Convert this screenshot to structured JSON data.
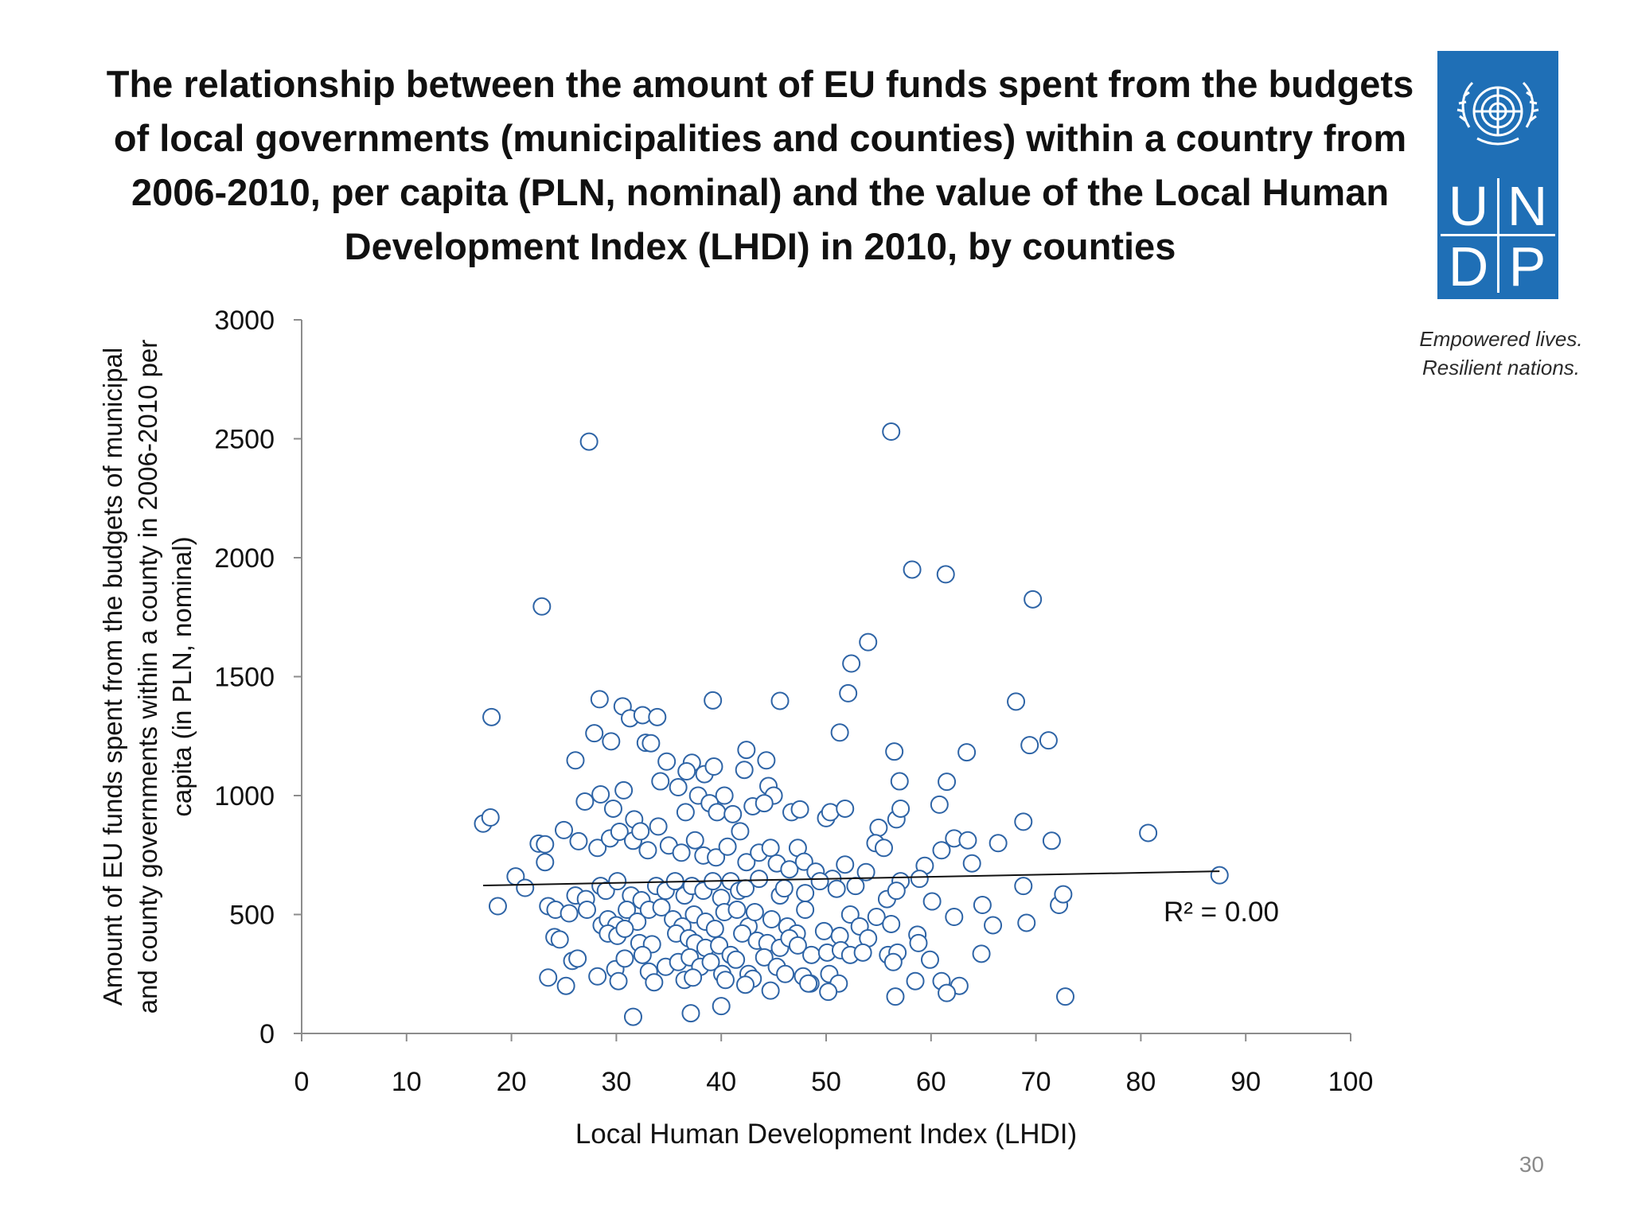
{
  "title_lines": [
    "The relationship between the amount of EU funds spent from the budgets",
    "of local governments (municipalities and counties) within a country from",
    "2006-2010, per capita (PLN, nominal) and the value of the Local Human",
    "Development Index (LHDI) in 2010, by counties"
  ],
  "logo": {
    "letters": [
      "U",
      "N",
      "D",
      "P"
    ],
    "tagline_lines": [
      "Empowered lives.",
      "Resilient nations."
    ],
    "color": "#1f6fb6"
  },
  "page_number": "30",
  "chart_data": {
    "type": "scatter",
    "xlabel": "Local Human Development Index (LHDI)",
    "ylabel_lines": [
      "Amount of EU funds spent from the budgets of municipal",
      "and county governments within a county in 2006-2010 per",
      "capita (in PLN, nominal)"
    ],
    "xlim": [
      0,
      100
    ],
    "ylim": [
      0,
      3000
    ],
    "xticks": [
      0,
      10,
      20,
      30,
      40,
      50,
      60,
      70,
      80,
      90,
      100
    ],
    "yticks": [
      0,
      500,
      1000,
      1500,
      2000,
      2500,
      3000
    ],
    "grid": false,
    "marker_color": "#2e64a6",
    "trendline": {
      "x": [
        17.3,
        87.5
      ],
      "y": [
        622,
        682
      ]
    },
    "annotation": "R² = 0.00",
    "points": [
      [
        27.4,
        2488
      ],
      [
        56.2,
        2530
      ],
      [
        22.9,
        1795
      ],
      [
        58.2,
        1950
      ],
      [
        61.4,
        1930
      ],
      [
        69.7,
        1825
      ],
      [
        54.0,
        1645
      ],
      [
        52.4,
        1555
      ],
      [
        52.1,
        1430
      ],
      [
        18.1,
        1330
      ],
      [
        28.4,
        1405
      ],
      [
        30.6,
        1375
      ],
      [
        31.3,
        1325
      ],
      [
        32.5,
        1338
      ],
      [
        33.9,
        1330
      ],
      [
        39.2,
        1400
      ],
      [
        45.6,
        1398
      ],
      [
        68.1,
        1395
      ],
      [
        51.3,
        1265
      ],
      [
        27.9,
        1262
      ],
      [
        29.5,
        1228
      ],
      [
        32.8,
        1222
      ],
      [
        33.3,
        1220
      ],
      [
        42.4,
        1192
      ],
      [
        56.5,
        1185
      ],
      [
        63.4,
        1182
      ],
      [
        71.2,
        1232
      ],
      [
        69.4,
        1212
      ],
      [
        26.1,
        1148
      ],
      [
        34.8,
        1143
      ],
      [
        37.2,
        1138
      ],
      [
        38.4,
        1090
      ],
      [
        39.3,
        1122
      ],
      [
        44.3,
        1148
      ],
      [
        42.2,
        1108
      ],
      [
        36.7,
        1102
      ],
      [
        35.9,
        1035
      ],
      [
        34.2,
        1060
      ],
      [
        40.3,
        1000
      ],
      [
        44.5,
        1040
      ],
      [
        45.0,
        1000
      ],
      [
        57.0,
        1060
      ],
      [
        61.5,
        1058
      ],
      [
        60.8,
        962
      ],
      [
        27.0,
        975
      ],
      [
        28.5,
        1005
      ],
      [
        30.7,
        1022
      ],
      [
        29.7,
        945
      ],
      [
        31.7,
        900
      ],
      [
        34.0,
        870
      ],
      [
        36.6,
        930
      ],
      [
        37.8,
        1000
      ],
      [
        38.9,
        968
      ],
      [
        39.6,
        930
      ],
      [
        41.1,
        922
      ],
      [
        43.0,
        955
      ],
      [
        44.1,
        968
      ],
      [
        46.7,
        930
      ],
      [
        47.5,
        942
      ],
      [
        50.0,
        905
      ],
      [
        50.4,
        930
      ],
      [
        51.8,
        945
      ],
      [
        55.0,
        865
      ],
      [
        56.7,
        900
      ],
      [
        57.1,
        945
      ],
      [
        62.2,
        820
      ],
      [
        63.5,
        812
      ],
      [
        66.4,
        800
      ],
      [
        68.8,
        890
      ],
      [
        71.5,
        810
      ],
      [
        80.7,
        843
      ],
      [
        17.3,
        882
      ],
      [
        18.0,
        908
      ],
      [
        22.6,
        798
      ],
      [
        23.2,
        795
      ],
      [
        25.0,
        855
      ],
      [
        26.4,
        808
      ],
      [
        28.2,
        780
      ],
      [
        29.4,
        820
      ],
      [
        30.3,
        848
      ],
      [
        31.6,
        810
      ],
      [
        32.3,
        850
      ],
      [
        33.0,
        770
      ],
      [
        35.0,
        790
      ],
      [
        36.2,
        760
      ],
      [
        37.5,
        812
      ],
      [
        38.3,
        748
      ],
      [
        39.5,
        740
      ],
      [
        40.6,
        785
      ],
      [
        41.8,
        850
      ],
      [
        42.4,
        720
      ],
      [
        43.6,
        760
      ],
      [
        44.7,
        780
      ],
      [
        45.3,
        715
      ],
      [
        46.5,
        690
      ],
      [
        47.3,
        780
      ],
      [
        47.9,
        722
      ],
      [
        49.0,
        680
      ],
      [
        50.6,
        650
      ],
      [
        51.8,
        710
      ],
      [
        53.8,
        678
      ],
      [
        54.7,
        800
      ],
      [
        55.5,
        780
      ],
      [
        57.1,
        640
      ],
      [
        59.4,
        705
      ],
      [
        61.0,
        770
      ],
      [
        63.9,
        715
      ],
      [
        20.4,
        660
      ],
      [
        21.3,
        612
      ],
      [
        23.2,
        720
      ],
      [
        26.1,
        580
      ],
      [
        27.1,
        565
      ],
      [
        28.5,
        620
      ],
      [
        29.0,
        600
      ],
      [
        30.1,
        640
      ],
      [
        31.4,
        580
      ],
      [
        32.4,
        560
      ],
      [
        33.8,
        620
      ],
      [
        34.7,
        600
      ],
      [
        35.6,
        640
      ],
      [
        36.5,
        580
      ],
      [
        37.2,
        620
      ],
      [
        38.3,
        600
      ],
      [
        39.2,
        640
      ],
      [
        40.0,
        570
      ],
      [
        40.9,
        640
      ],
      [
        41.7,
        600
      ],
      [
        42.3,
        610
      ],
      [
        43.6,
        650
      ],
      [
        45.6,
        580
      ],
      [
        46.0,
        610
      ],
      [
        48.0,
        590
      ],
      [
        49.4,
        640
      ],
      [
        51.0,
        608
      ],
      [
        52.8,
        620
      ],
      [
        55.8,
        565
      ],
      [
        56.7,
        600
      ],
      [
        58.9,
        650
      ],
      [
        60.1,
        555
      ],
      [
        64.9,
        540
      ],
      [
        68.8,
        620
      ],
      [
        72.2,
        540
      ],
      [
        72.6,
        585
      ],
      [
        87.5,
        665
      ],
      [
        18.7,
        535
      ],
      [
        23.5,
        535
      ],
      [
        24.2,
        520
      ],
      [
        25.5,
        505
      ],
      [
        27.2,
        520
      ],
      [
        28.6,
        455
      ],
      [
        29.2,
        480
      ],
      [
        30.0,
        455
      ],
      [
        31.0,
        520
      ],
      [
        32.0,
        470
      ],
      [
        33.1,
        520
      ],
      [
        34.3,
        530
      ],
      [
        35.4,
        480
      ],
      [
        36.3,
        450
      ],
      [
        37.4,
        500
      ],
      [
        38.5,
        470
      ],
      [
        39.4,
        440
      ],
      [
        40.3,
        510
      ],
      [
        41.5,
        520
      ],
      [
        42.6,
        450
      ],
      [
        43.2,
        510
      ],
      [
        44.8,
        480
      ],
      [
        46.3,
        450
      ],
      [
        47.2,
        420
      ],
      [
        48.0,
        520
      ],
      [
        49.8,
        430
      ],
      [
        51.3,
        410
      ],
      [
        52.3,
        500
      ],
      [
        53.2,
        450
      ],
      [
        54.8,
        490
      ],
      [
        56.2,
        460
      ],
      [
        58.7,
        415
      ],
      [
        62.2,
        490
      ],
      [
        65.9,
        455
      ],
      [
        69.1,
        465
      ],
      [
        24.1,
        405
      ],
      [
        24.6,
        395
      ],
      [
        29.2,
        420
      ],
      [
        30.1,
        410
      ],
      [
        30.8,
        440
      ],
      [
        32.2,
        380
      ],
      [
        33.4,
        375
      ],
      [
        35.7,
        420
      ],
      [
        36.9,
        400
      ],
      [
        37.5,
        380
      ],
      [
        38.5,
        360
      ],
      [
        39.8,
        370
      ],
      [
        40.9,
        330
      ],
      [
        42.0,
        420
      ],
      [
        43.4,
        390
      ],
      [
        44.4,
        380
      ],
      [
        45.6,
        360
      ],
      [
        46.5,
        400
      ],
      [
        47.3,
        370
      ],
      [
        48.6,
        330
      ],
      [
        50.1,
        340
      ],
      [
        51.4,
        350
      ],
      [
        52.3,
        330
      ],
      [
        54.0,
        400
      ],
      [
        55.9,
        330
      ],
      [
        56.8,
        340
      ],
      [
        58.8,
        380
      ],
      [
        59.9,
        310
      ],
      [
        64.8,
        335
      ],
      [
        25.8,
        305
      ],
      [
        26.3,
        315
      ],
      [
        29.9,
        270
      ],
      [
        30.8,
        315
      ],
      [
        32.5,
        330
      ],
      [
        33.1,
        260
      ],
      [
        34.7,
        280
      ],
      [
        35.9,
        300
      ],
      [
        37.0,
        320
      ],
      [
        38.0,
        280
      ],
      [
        39.0,
        300
      ],
      [
        40.1,
        250
      ],
      [
        41.4,
        310
      ],
      [
        42.6,
        250
      ],
      [
        43.0,
        230
      ],
      [
        44.1,
        320
      ],
      [
        45.3,
        280
      ],
      [
        46.1,
        250
      ],
      [
        47.8,
        240
      ],
      [
        48.5,
        210
      ],
      [
        50.3,
        250
      ],
      [
        51.2,
        210
      ],
      [
        53.5,
        340
      ],
      [
        56.4,
        300
      ],
      [
        23.5,
        235
      ],
      [
        25.2,
        200
      ],
      [
        28.2,
        240
      ],
      [
        30.2,
        220
      ],
      [
        33.6,
        215
      ],
      [
        36.5,
        225
      ],
      [
        37.3,
        235
      ],
      [
        40.4,
        225
      ],
      [
        42.3,
        205
      ],
      [
        44.7,
        180
      ],
      [
        48.3,
        210
      ],
      [
        50.2,
        175
      ],
      [
        58.5,
        220
      ],
      [
        61.0,
        220
      ],
      [
        62.7,
        200
      ],
      [
        61.5,
        170
      ],
      [
        56.6,
        155
      ],
      [
        72.8,
        155
      ],
      [
        31.6,
        70
      ],
      [
        37.1,
        85
      ],
      [
        40.0,
        115
      ]
    ]
  }
}
